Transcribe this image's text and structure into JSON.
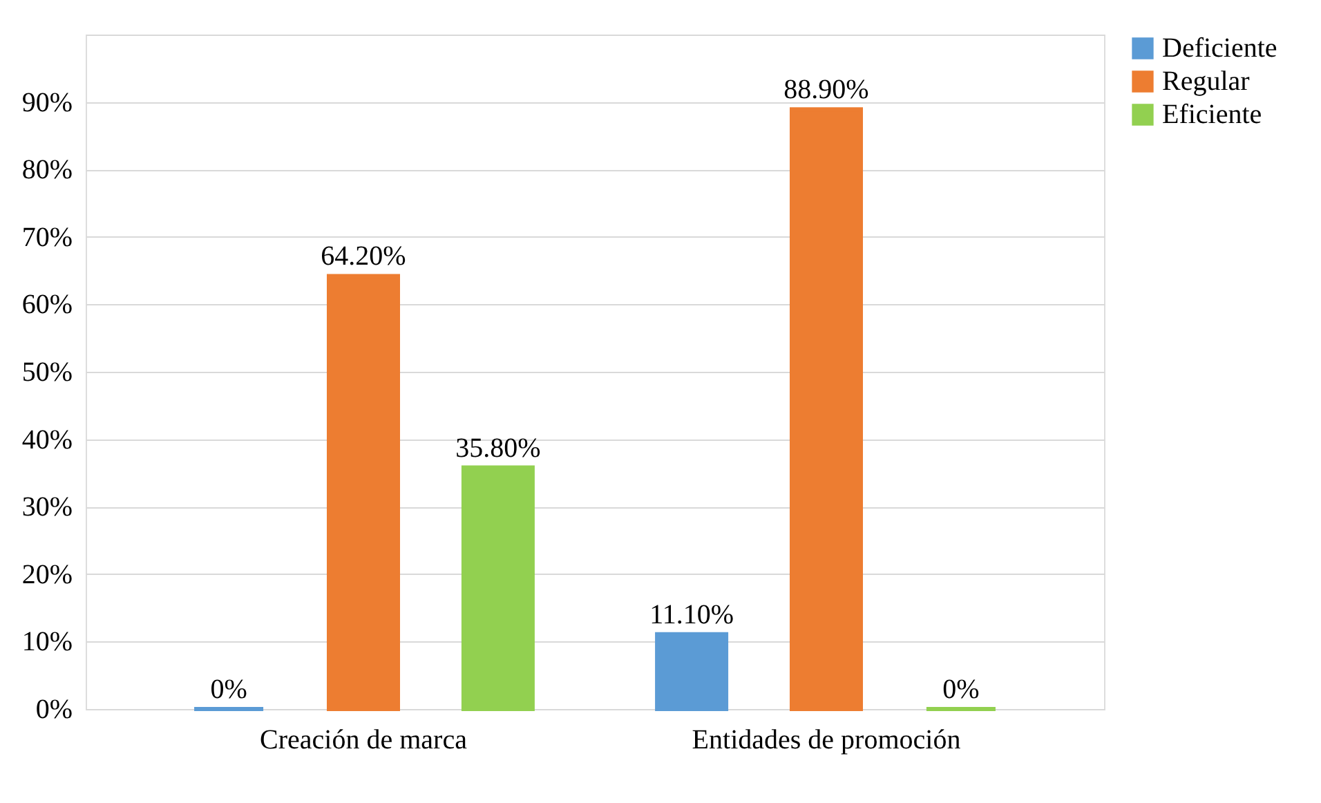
{
  "chart_data": {
    "type": "bar",
    "categories": [
      "Creación de marca",
      "Entidades de promoción"
    ],
    "series": [
      {
        "name": "Deficiente",
        "color": "#5b9bd5",
        "values": [
          0,
          11.1
        ],
        "value_labels": [
          "0%",
          "11.10%"
        ]
      },
      {
        "name": "Regular",
        "color": "#ed7d31",
        "values": [
          64.2,
          88.9
        ],
        "value_labels": [
          "64.20%",
          "88.90%"
        ]
      },
      {
        "name": "Eficiente",
        "color": "#92d050",
        "values": [
          35.8,
          0
        ],
        "value_labels": [
          "35.80%",
          "0%"
        ]
      }
    ],
    "ylim": [
      0,
      100
    ],
    "yticks": [
      {
        "value": 0,
        "label": "0%"
      },
      {
        "value": 10,
        "label": "10%"
      },
      {
        "value": 20,
        "label": "20%"
      },
      {
        "value": 30,
        "label": "30%"
      },
      {
        "value": 40,
        "label": "40%"
      },
      {
        "value": 50,
        "label": "50%"
      },
      {
        "value": 60,
        "label": "60%"
      },
      {
        "value": 70,
        "label": "70%"
      },
      {
        "value": 80,
        "label": "80%"
      },
      {
        "value": 90,
        "label": "90%"
      },
      {
        "value": 100,
        "label": null
      }
    ],
    "grid": "y",
    "legend": "right"
  }
}
